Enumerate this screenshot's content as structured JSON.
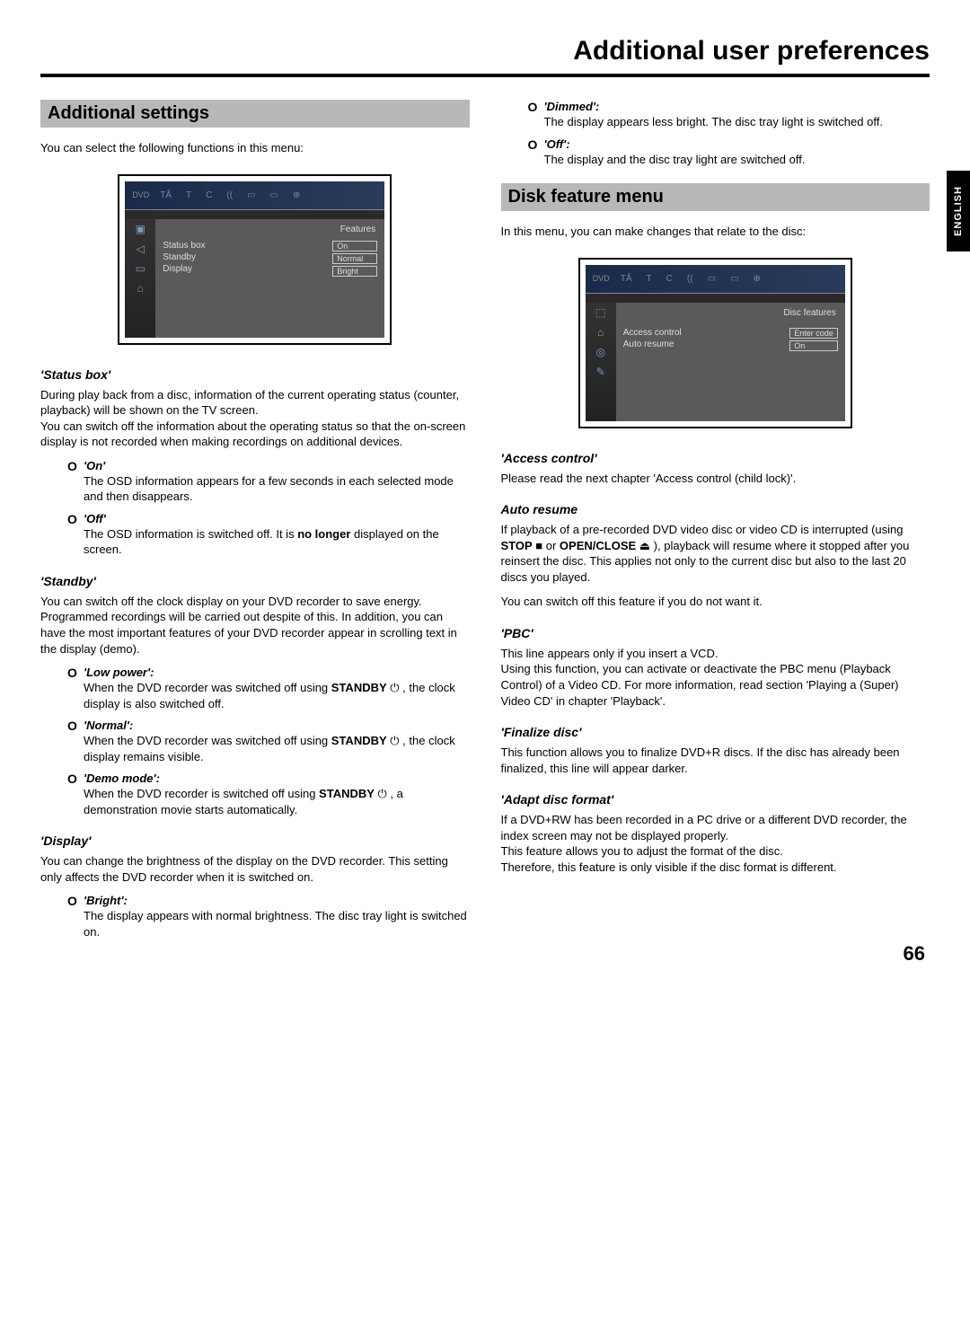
{
  "page_title": "Additional user preferences",
  "language_tab": "ENGLISH",
  "page_number": "66",
  "left": {
    "section_heading": "Additional settings",
    "intro": "You can select the following functions in this menu:",
    "screenshot": {
      "logo": "DVD",
      "topicons": [
        "TÅ",
        "T",
        "C",
        "((",
        "▭",
        "▭",
        "⊕"
      ],
      "sideicons": [
        "▣",
        "◁",
        "▭",
        "⌂"
      ],
      "menu_title": "Features",
      "labels": [
        "Status box",
        "Standby",
        "Display"
      ],
      "values": [
        "On",
        "Normal",
        "Bright"
      ]
    },
    "status_box": {
      "heading": "'Status box'",
      "para": "During play back from a disc, information of the current operating status (counter, playback) will be shown on the TV screen.\nYou can switch off the information about the operating status so that the on-screen display is not recorded when making recordings on additional devices.",
      "opts": [
        {
          "title": "'On'",
          "desc": "The OSD information appears for a few seconds in each selected mode and then disappears."
        },
        {
          "title": "'Off'",
          "desc_html": "The OSD information is switched off. It is <b>no longer</b> displayed on the screen."
        }
      ]
    },
    "standby": {
      "heading": "'Standby'",
      "para": "You can switch off the clock display on your DVD recorder to save energy. Programmed recordings will be carried out despite of this. In addition, you can have the most important features of your DVD recorder appear in scrolling text in the display (demo).",
      "opts": [
        {
          "title": "'Low power':",
          "desc_html": "When the DVD recorder was switched off using <b>STANDBY</b> ⏻ , the clock display is also switched off."
        },
        {
          "title": "'Normal':",
          "desc_html": "When the DVD recorder was switched off using <b>STANDBY</b> ⏻ , the clock display remains visible."
        },
        {
          "title": "'Demo mode':",
          "desc_html": "When the DVD recorder is switched off using <b>STANDBY</b> ⏻ , a demonstration movie starts automatically."
        }
      ]
    },
    "display": {
      "heading": "'Display'",
      "para": "You can change the brightness of the display on the DVD recorder. This setting only affects the DVD recorder when it is switched on.",
      "opts": [
        {
          "title": "'Bright':",
          "desc": "The display appears with normal brightness. The disc tray light is switched on."
        }
      ]
    }
  },
  "right": {
    "display_cont": [
      {
        "title": "'Dimmed':",
        "desc": "The display appears less bright. The disc tray light is switched off."
      },
      {
        "title": "'Off':",
        "desc": "The display and the disc tray light are switched off."
      }
    ],
    "section_heading": "Disk feature menu",
    "intro": "In this menu, you can make changes that relate to the disc:",
    "screenshot": {
      "logo": "DVD",
      "topicons": [
        "TÅ",
        "T",
        "C",
        "((",
        "▭",
        "▭",
        "⊕"
      ],
      "sideicons": [
        "⬚",
        "⌂",
        "◎",
        "✎"
      ],
      "menu_title": "Disc features",
      "labels": [
        "Access control",
        "Auto resume"
      ],
      "values": [
        "Enter code",
        "On"
      ]
    },
    "access_control": {
      "heading": "'Access control'",
      "para": "Please read the next chapter 'Access control (child lock)'."
    },
    "auto_resume": {
      "heading": "Auto resume",
      "para_html": "If playback of a pre-recorded DVD video disc or video CD is interrupted (using  <b>STOP</b> ■  or  <b>OPEN/CLOSE</b> ⏏ ), playback will resume where it stopped after you reinsert the disc. This applies not only to the current disc but also to the last 20 discs you played.",
      "para2": "You can switch off this feature if you do not want it."
    },
    "pbc": {
      "heading": "'PBC'",
      "para": "This line appears only if you insert a VCD.\nUsing this function, you can activate or deactivate the PBC menu (Playback Control) of a Video CD. For more information, read section 'Playing a (Super) Video CD' in chapter 'Playback'."
    },
    "finalize": {
      "heading": "'Finalize disc'",
      "para": "This function allows you to finalize DVD+R discs. If the disc has already been finalized, this line will appear darker."
    },
    "adapt": {
      "heading": "'Adapt disc format'",
      "para": "If a DVD+RW has been recorded in a PC drive or a different DVD recorder, the index screen may not be displayed properly.\nThis feature allows you to adjust the format of the disc.\nTherefore, this feature is only visible if the disc format is different."
    }
  }
}
